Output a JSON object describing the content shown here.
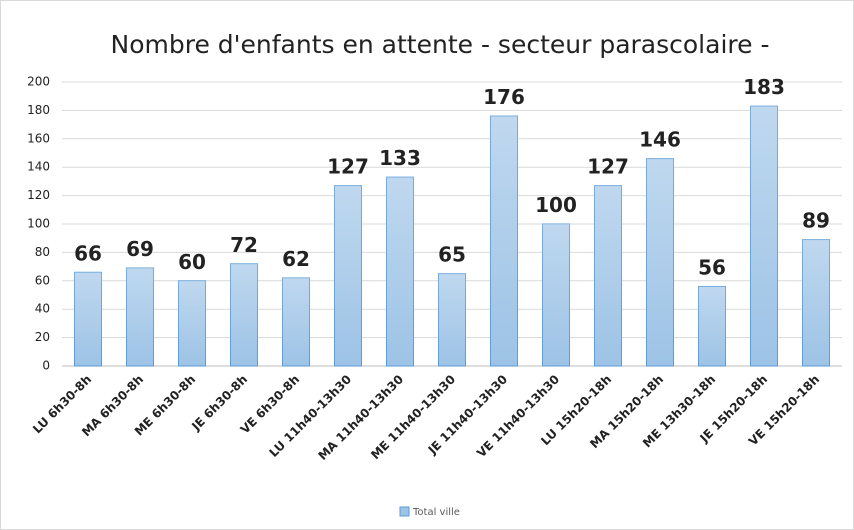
{
  "chart_data": {
    "type": "bar",
    "title": "Nombre d'enfants en attente - secteur parascolaire -",
    "categories": [
      "LU 6h30-8h",
      "MA 6h30-8h",
      "ME 6h30-8h",
      "JE 6h30-8h",
      "VE 6h30-8h",
      "LU 11h40-13h30",
      "MA 11h40-13h30",
      "ME 11h40-13h30",
      "JE 11h40-13h30",
      "VE 11h40-13h30",
      "LU 15h20-18h",
      "MA 15h20-18h",
      "ME 13h30-18h",
      "JE 15h20-18h",
      "VE 15h20-18h"
    ],
    "series": [
      {
        "name": "Total ville",
        "color": "#9dc3e6",
        "values": [
          66,
          69,
          60,
          72,
          62,
          127,
          133,
          65,
          176,
          100,
          127,
          146,
          56,
          183,
          89
        ]
      }
    ],
    "ylim": [
      0,
      200
    ],
    "yticks": [
      0,
      20,
      40,
      60,
      80,
      100,
      120,
      140,
      160,
      180,
      200
    ],
    "grid": true,
    "legend": "bottom"
  }
}
